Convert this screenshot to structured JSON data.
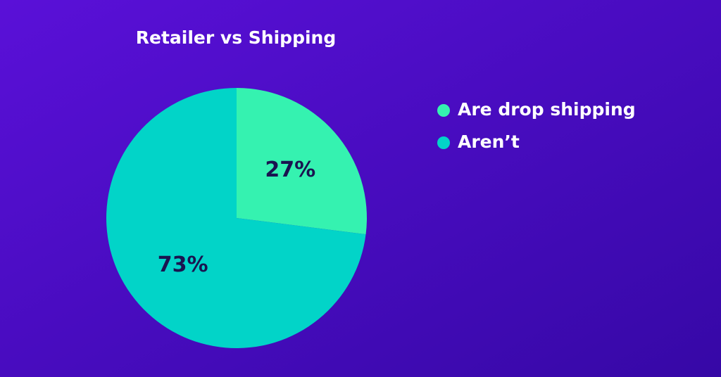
{
  "chart_data": {
    "type": "pie",
    "title": "Retailer vs Shipping",
    "categories": [
      "Are drop shipping",
      "Aren’t"
    ],
    "values": [
      27,
      73
    ],
    "value_labels": [
      "27%",
      "73%"
    ],
    "colors": [
      "#35f2b0",
      "#02d4c8"
    ],
    "legend": "right"
  }
}
